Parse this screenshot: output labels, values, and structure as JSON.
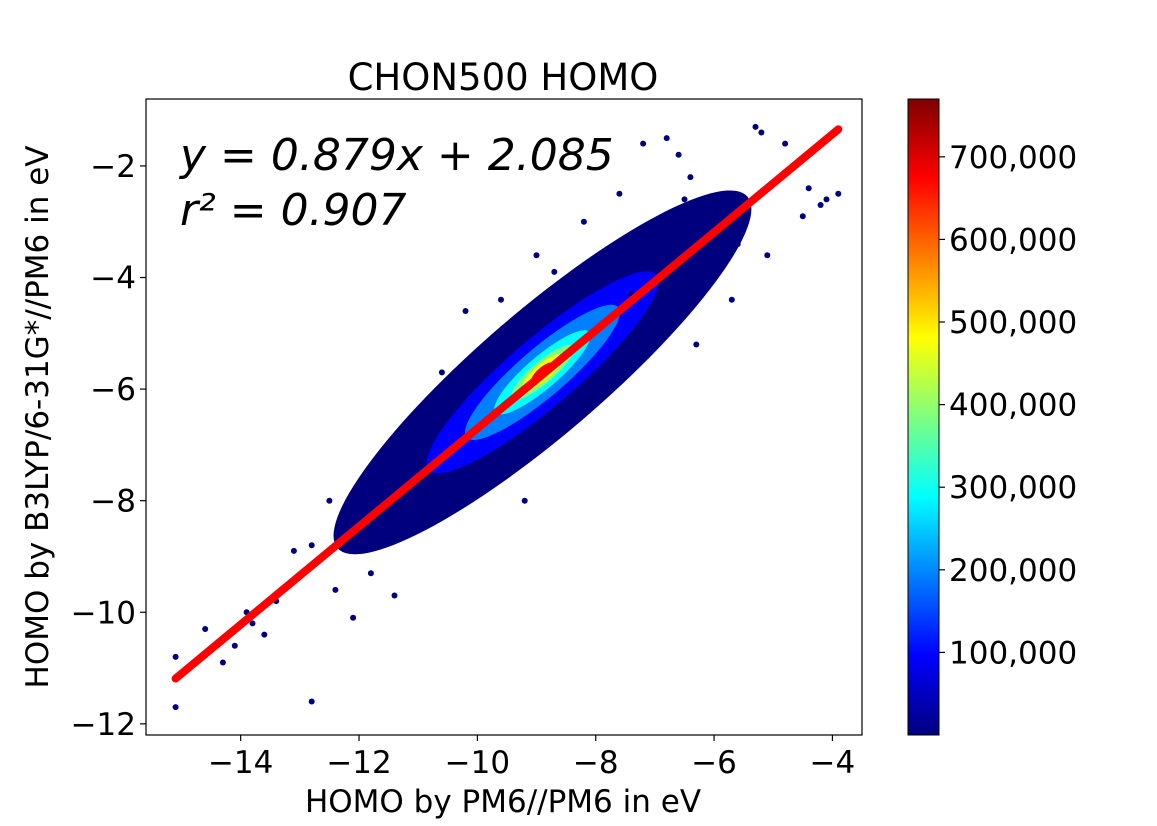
{
  "chart_data": {
    "type": "heatmap",
    "title": "CHON500 HOMO",
    "xlabel": "HOMO by PM6//PM6 in eV",
    "ylabel": "HOMO by B3LYP/6-31G*//PM6 in eV",
    "xlim": [
      -15.6,
      -3.5
    ],
    "ylim": [
      -12.2,
      -0.8
    ],
    "x_ticks": [
      -14,
      -12,
      -10,
      -8,
      -6,
      -4
    ],
    "x_tick_labels": [
      "−14",
      "−12",
      "−10",
      "−8",
      "−6",
      "−4"
    ],
    "y_ticks": [
      -12,
      -10,
      -8,
      -6,
      -4,
      -2
    ],
    "y_tick_labels": [
      "−12",
      "−10",
      "−8",
      "−6",
      "−4",
      "−2"
    ],
    "density": {
      "center": [
        -8.9,
        -5.7
      ],
      "peak_count": 770000,
      "colormap": "jet",
      "colors": [
        "#00007f",
        "#0000ff",
        "#007fff",
        "#00ffff",
        "#7fff7f",
        "#ffff00",
        "#ff7f00",
        "#ff0000",
        "#7f0000"
      ]
    },
    "outlier_points": [
      [
        -15.1,
        -10.8
      ],
      [
        -15.1,
        -11.7
      ],
      [
        -12.8,
        -11.6
      ],
      [
        -14.3,
        -10.9
      ],
      [
        -14.1,
        -10.6
      ],
      [
        -13.8,
        -10.2
      ],
      [
        -12.8,
        -8.8
      ],
      [
        -13.1,
        -8.9
      ],
      [
        -12.1,
        -10.1
      ],
      [
        -11.4,
        -9.7
      ],
      [
        -11.6,
        -7.3
      ],
      [
        -9.2,
        -8.0
      ],
      [
        -12.5,
        -8.0
      ],
      [
        -6.5,
        -2.6
      ],
      [
        -6.2,
        -2.9
      ],
      [
        -5.9,
        -3.3
      ],
      [
        -5.6,
        -3.4
      ],
      [
        -5.3,
        -1.3
      ],
      [
        -5.2,
        -1.4
      ],
      [
        -4.8,
        -1.6
      ],
      [
        -4.2,
        -2.7
      ],
      [
        -4.1,
        -2.6
      ],
      [
        -3.9,
        -2.5
      ],
      [
        -4.5,
        -2.9
      ],
      [
        -5.5,
        -3.1
      ],
      [
        -5.8,
        -3.6
      ],
      [
        -6.1,
        -4.0
      ],
      [
        -6.6,
        -4.5
      ],
      [
        -7.0,
        -5.0
      ],
      [
        -6.8,
        -1.5
      ],
      [
        -7.2,
        -1.6
      ],
      [
        -9.0,
        -3.6
      ],
      [
        -8.7,
        -3.9
      ],
      [
        -10.2,
        -4.6
      ],
      [
        -9.6,
        -4.4
      ],
      [
        -6.6,
        -1.8
      ],
      [
        -6.4,
        -2.2
      ],
      [
        -7.6,
        -2.5
      ],
      [
        -8.2,
        -3.0
      ],
      [
        -10.6,
        -5.7
      ],
      [
        -11.3,
        -6.8
      ],
      [
        -12.0,
        -7.7
      ],
      [
        -11.8,
        -9.3
      ],
      [
        -12.4,
        -9.6
      ],
      [
        -13.4,
        -9.8
      ],
      [
        -13.6,
        -10.4
      ],
      [
        -13.9,
        -10.0
      ],
      [
        -14.6,
        -10.3
      ],
      [
        -6.9,
        -4.1
      ],
      [
        -5.7,
        -4.4
      ],
      [
        -5.1,
        -3.6
      ],
      [
        -4.4,
        -2.4
      ],
      [
        -6.3,
        -5.2
      ],
      [
        -7.4,
        -4.3
      ]
    ],
    "annotation": {
      "equation": "y = 0.879x + 2.085",
      "r2_label": "r² = 0.907"
    },
    "fit": {
      "slope": 0.879,
      "intercept": 2.085,
      "x_range": [
        -15.1,
        -3.9
      ],
      "color": "#ff0000"
    },
    "colorbar": {
      "min": 0,
      "max": 770000,
      "ticks": [
        100000,
        200000,
        300000,
        400000,
        500000,
        600000,
        700000
      ],
      "tick_labels": [
        "100,000",
        "200,000",
        "300,000",
        "400,000",
        "500,000",
        "600,000",
        "700,000"
      ]
    },
    "grid": false
  }
}
